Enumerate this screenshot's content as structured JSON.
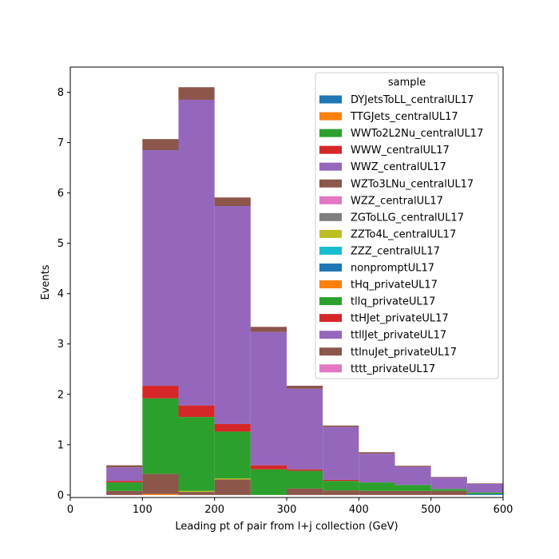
{
  "chart_data": {
    "type": "bar",
    "stacked": true,
    "histogram": true,
    "title": "",
    "xlabel": "Leading pt of pair from l+j collection (GeV)",
    "ylabel": "Events",
    "xlim": [
      0,
      600
    ],
    "ylim": [
      -0.05,
      8.5
    ],
    "xticks": [
      0,
      100,
      200,
      300,
      400,
      500,
      600
    ],
    "yticks": [
      0,
      1,
      2,
      3,
      4,
      5,
      6,
      7,
      8
    ],
    "grid": false,
    "legend_title": "sample",
    "legend_position": "top-right",
    "bin_edges": [
      50,
      100,
      150,
      200,
      250,
      300,
      350,
      400,
      450,
      500,
      550,
      600
    ],
    "series": [
      {
        "name": "DYJetsToLL_centralUL17",
        "color": "#1f77b4",
        "values": [
          0,
          0,
          0,
          0,
          0,
          0,
          0,
          0,
          0,
          0,
          0
        ]
      },
      {
        "name": "TTGJets_centralUL17",
        "color": "#ff7f0e",
        "values": [
          0,
          0.02,
          0,
          0,
          0,
          0,
          0,
          0,
          0,
          0,
          0
        ]
      },
      {
        "name": "WWTo2L2Nu_centralUL17",
        "color": "#2ca02c",
        "values": [
          0,
          0,
          0,
          0,
          0,
          0,
          0,
          0,
          0,
          0,
          0
        ]
      },
      {
        "name": "WWW_centralUL17",
        "color": "#d62728",
        "values": [
          0,
          0,
          0,
          0,
          0,
          0,
          0,
          0,
          0,
          0,
          0
        ]
      },
      {
        "name": "WWZ_centralUL17",
        "color": "#9467bd",
        "values": [
          0,
          0,
          0,
          0,
          0,
          0,
          0,
          0,
          0,
          0,
          0
        ]
      },
      {
        "name": "WZTo3LNu_centralUL17",
        "color": "#8c564b",
        "values": [
          0.08,
          0.4,
          0.06,
          0.31,
          0,
          0.13,
          0.09,
          0.08,
          0.08,
          0.08,
          0
        ]
      },
      {
        "name": "WZZ_centralUL17",
        "color": "#e377c2",
        "values": [
          0,
          0,
          0,
          0,
          0,
          0,
          0,
          0,
          0,
          0,
          0
        ]
      },
      {
        "name": "ZGToLLG_centralUL17",
        "color": "#7f7f7f",
        "values": [
          0,
          0,
          0,
          0,
          0,
          0,
          0,
          0,
          0,
          0,
          0
        ]
      },
      {
        "name": "ZZTo4L_centralUL17",
        "color": "#bcbd22",
        "values": [
          0,
          0,
          0.02,
          0.02,
          0,
          0,
          0,
          0,
          0,
          0,
          0
        ]
      },
      {
        "name": "ZZZ_centralUL17",
        "color": "#17becf",
        "values": [
          0,
          0,
          0,
          0,
          0,
          0,
          0,
          0,
          0,
          0,
          0
        ]
      },
      {
        "name": "nonpromptUL17",
        "color": "#1f77b4",
        "values": [
          0,
          0,
          0,
          0,
          0,
          0,
          0,
          0,
          0,
          0,
          0.02
        ]
      },
      {
        "name": "tHq_privateUL17",
        "color": "#ff7f0e",
        "values": [
          0,
          0,
          0,
          0,
          0,
          0,
          0,
          0,
          0,
          0,
          0
        ]
      },
      {
        "name": "tllq_privateUL17",
        "color": "#2ca02c",
        "values": [
          0.17,
          1.5,
          1.47,
          0.93,
          0.51,
          0.35,
          0.19,
          0.17,
          0.12,
          0.04,
          0.03
        ]
      },
      {
        "name": "ttHJet_privateUL17",
        "color": "#d62728",
        "values": [
          0.03,
          0.25,
          0.23,
          0.15,
          0.08,
          0.03,
          0.02,
          0,
          0,
          0,
          0
        ]
      },
      {
        "name": "ttllJet_privateUL17",
        "color": "#9467bd",
        "values": [
          0.27,
          4.68,
          6.07,
          4.33,
          2.65,
          1.6,
          1.05,
          0.57,
          0.36,
          0.23,
          0.17
        ]
      },
      {
        "name": "ttlnuJet_privateUL17",
        "color": "#8c564b",
        "values": [
          0.04,
          0.22,
          0.25,
          0.17,
          0.1,
          0.06,
          0.03,
          0.03,
          0.02,
          0.01,
          0.01
        ]
      },
      {
        "name": "tttt_privateUL17",
        "color": "#e377c2",
        "values": [
          0,
          0,
          0,
          0,
          0,
          0,
          0,
          0,
          0,
          0,
          0
        ]
      }
    ]
  }
}
